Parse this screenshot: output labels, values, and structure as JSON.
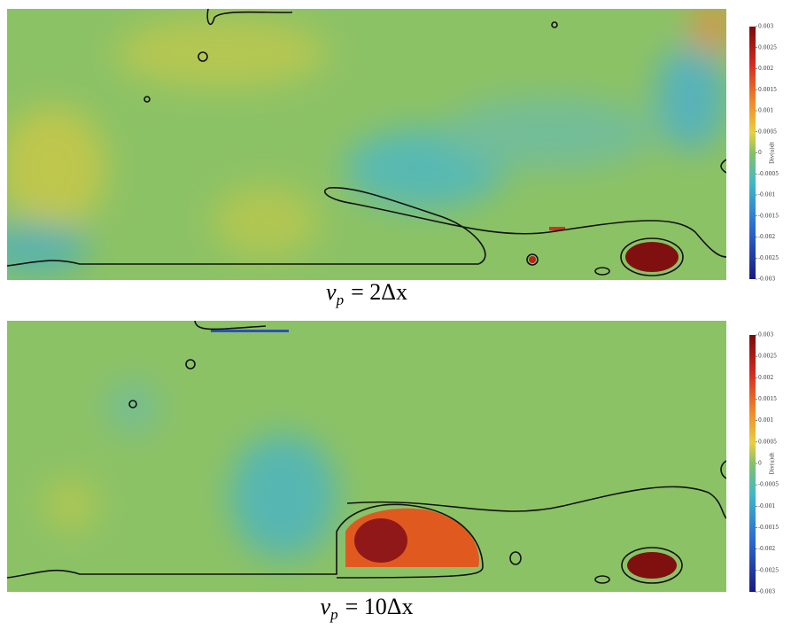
{
  "panels": [
    {
      "caption": {
        "var": "v",
        "sub": "p",
        "rest": "= 2Δx"
      },
      "colorbar": {
        "label": "Div(u)dt",
        "lim": [
          -0.003,
          0.003
        ],
        "ticks": [
          0.003,
          0.0025,
          0.002,
          0.0015,
          0.001,
          0.0005,
          0,
          -0.0005,
          -0.001,
          -0.0015,
          -0.002,
          -0.0025,
          -0.003
        ]
      }
    },
    {
      "caption": {
        "var": "v",
        "sub": "p",
        "rest": "= 10Δx"
      },
      "colorbar": {
        "label": "Div(u)dt",
        "lim": [
          -0.003,
          0.003
        ],
        "ticks": [
          0.003,
          0.0025,
          0.002,
          0.0015,
          0.001,
          0.0005,
          0,
          -0.0005,
          -0.001,
          -0.0015,
          -0.002,
          -0.0025,
          -0.003
        ]
      }
    }
  ]
}
